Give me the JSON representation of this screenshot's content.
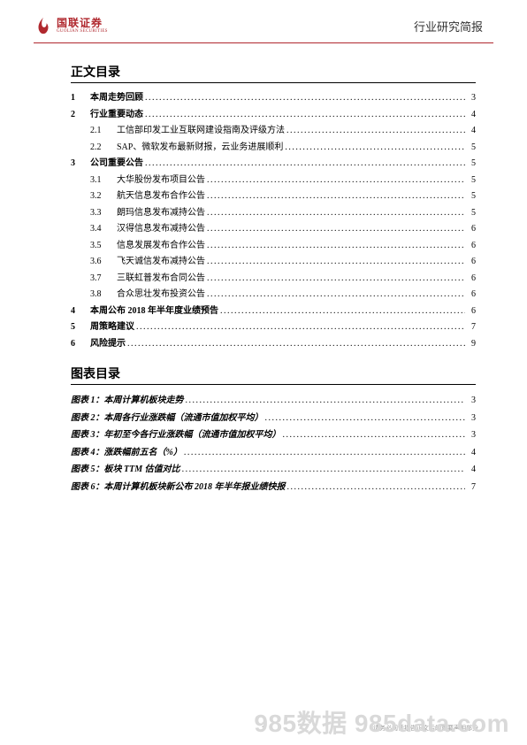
{
  "header": {
    "logo_cn": "国联证券",
    "logo_en": "GUOLIAN SECURITIES",
    "doctype": "行业研究简报",
    "brand_color": "#b0282e"
  },
  "toc": {
    "title": "正文目录",
    "items": [
      {
        "level": 1,
        "num": "1",
        "label": "本周走势回顾",
        "page": "3"
      },
      {
        "level": 1,
        "num": "2",
        "label": "行业重要动态",
        "page": "4"
      },
      {
        "level": 2,
        "num": "2.1",
        "label": "工信部印发工业互联网建设指南及评级方法",
        "page": "4"
      },
      {
        "level": 2,
        "num": "2.2",
        "label": "SAP、微软发布最新财报，云业务进展顺利",
        "page": "5"
      },
      {
        "level": 1,
        "num": "3",
        "label": "公司重要公告",
        "page": "5"
      },
      {
        "level": 2,
        "num": "3.1",
        "label": "大华股份发布项目公告",
        "page": "5"
      },
      {
        "level": 2,
        "num": "3.2",
        "label": "航天信息发布合作公告",
        "page": "5"
      },
      {
        "level": 2,
        "num": "3.3",
        "label": "朗玛信息发布减持公告",
        "page": "5"
      },
      {
        "level": 2,
        "num": "3.4",
        "label": "汉得信息发布减持公告",
        "page": "6"
      },
      {
        "level": 2,
        "num": "3.5",
        "label": "信息发展发布合作公告",
        "page": "6"
      },
      {
        "level": 2,
        "num": "3.6",
        "label": "飞天诚信发布减持公告",
        "page": "6"
      },
      {
        "level": 2,
        "num": "3.7",
        "label": "三联虹普发布合同公告",
        "page": "6"
      },
      {
        "level": 2,
        "num": "3.8",
        "label": "合众思壮发布投资公告",
        "page": "6"
      },
      {
        "level": 1,
        "num": "4",
        "label": "本周公布 2018 年半年度业绩预告",
        "page": "6"
      },
      {
        "level": 1,
        "num": "5",
        "label": "周策略建议",
        "page": "7"
      },
      {
        "level": 1,
        "num": "6",
        "label": "风险提示",
        "page": "9"
      }
    ]
  },
  "figtoc": {
    "title": "图表目录",
    "items": [
      {
        "label": "图表 1：本周计算机板块走势",
        "page": "3"
      },
      {
        "label": "图表 2：本周各行业涨跌幅（流通市值加权平均）",
        "page": "3"
      },
      {
        "label": "图表 3：年初至今各行业涨跌幅（流通市值加权平均）",
        "page": "3"
      },
      {
        "label": "图表 4：涨跌幅前五名（%）",
        "page": "4"
      },
      {
        "label": "图表 5：板块 TTM 估值对比",
        "page": "4"
      },
      {
        "label": "图表 6：本周计算机板块新公布 2018 年半年报业绩快报",
        "page": "7"
      }
    ]
  },
  "footer": {
    "watermark": "985数据 985data.com",
    "footnote": "请务必阅读报告正文后的重要声明部分",
    "pagenum": "2"
  }
}
